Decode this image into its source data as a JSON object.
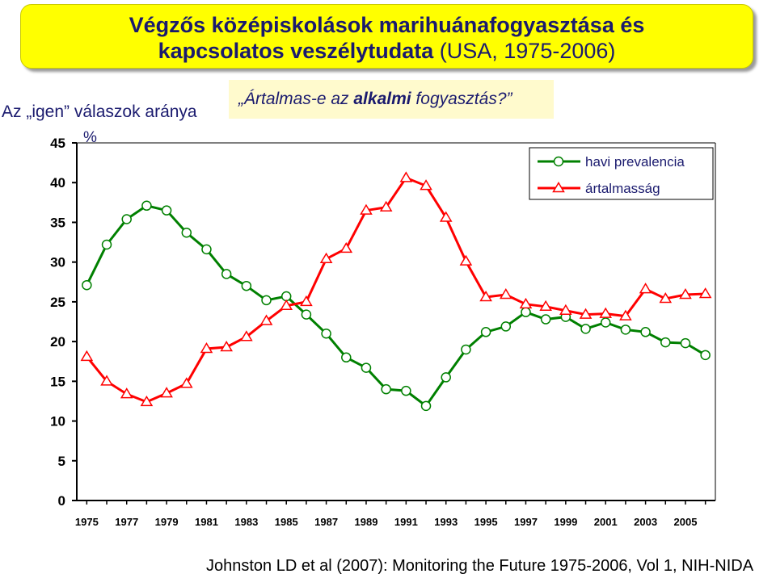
{
  "title": {
    "line1": "Végzős középiskolások marihuánafogyasztása és",
    "line2_bold": "kapcsolatos veszélytudata",
    "line2_rest": " (USA, 1975-2006)"
  },
  "ylabel": "Az „igen” válaszok aránya",
  "question": {
    "prefix": "„Ártalmas-e az ",
    "bold": "alkalmi",
    "suffix": " fogyasztás?”"
  },
  "source": "Johnston LD et al (2007): Monitoring the Future 1975-2006, Vol 1, NIH-NIDA",
  "colors": {
    "green": "#008000",
    "red": "#ff0000",
    "title_bg": "#ffff00",
    "question_bg": "#fffacd",
    "text": "#1a1a6e"
  },
  "chart_data": {
    "type": "line",
    "ylabel": "%",
    "ylim": [
      0,
      45
    ],
    "yticks": [
      0,
      5,
      10,
      15,
      20,
      25,
      30,
      35,
      40,
      45
    ],
    "xlim": [
      1975,
      2006
    ],
    "xticks": [
      "1975",
      "1977",
      "1979",
      "1981",
      "1983",
      "1985",
      "1987",
      "1989",
      "1991",
      "1993",
      "1995",
      "1997",
      "1999",
      "2001",
      "2003",
      "2005"
    ],
    "legend_position": "top-right",
    "grid": false,
    "series": [
      {
        "name": "havi prevalencia",
        "marker": "circle",
        "color": "#008000",
        "x": [
          1975,
          1976,
          1977,
          1978,
          1979,
          1980,
          1981,
          1982,
          1983,
          1984,
          1985,
          1986,
          1987,
          1988,
          1989,
          1990,
          1991,
          1992,
          1993,
          1994,
          1995,
          1996,
          1997,
          1998,
          1999,
          2000,
          2001,
          2002,
          2003,
          2004,
          2005,
          2006
        ],
        "values": [
          27.1,
          32.2,
          35.4,
          37.1,
          36.5,
          33.7,
          31.6,
          28.5,
          27.0,
          25.2,
          25.7,
          23.4,
          21.0,
          18.0,
          16.7,
          14.0,
          13.8,
          11.9,
          15.5,
          19.0,
          21.2,
          21.9,
          23.7,
          22.8,
          23.1,
          21.6,
          22.4,
          21.5,
          21.2,
          19.9,
          19.8,
          18.3
        ]
      },
      {
        "name": "ártalmasság",
        "marker": "triangle",
        "color": "#ff0000",
        "x": [
          1975,
          1976,
          1977,
          1978,
          1979,
          1980,
          1981,
          1982,
          1983,
          1984,
          1985,
          1986,
          1987,
          1988,
          1989,
          1990,
          1991,
          1992,
          1993,
          1994,
          1995,
          1996,
          1997,
          1998,
          1999,
          2000,
          2001,
          2002,
          2003,
          2004,
          2005,
          2006
        ],
        "values": [
          18.1,
          15.0,
          13.4,
          12.4,
          13.5,
          14.7,
          19.1,
          19.3,
          20.6,
          22.6,
          24.5,
          25.0,
          30.4,
          31.7,
          36.5,
          36.9,
          40.6,
          39.6,
          35.6,
          30.1,
          25.6,
          25.9,
          24.7,
          24.4,
          23.9,
          23.4,
          23.5,
          23.2,
          26.6,
          25.4,
          25.9,
          26.0
        ]
      }
    ]
  }
}
